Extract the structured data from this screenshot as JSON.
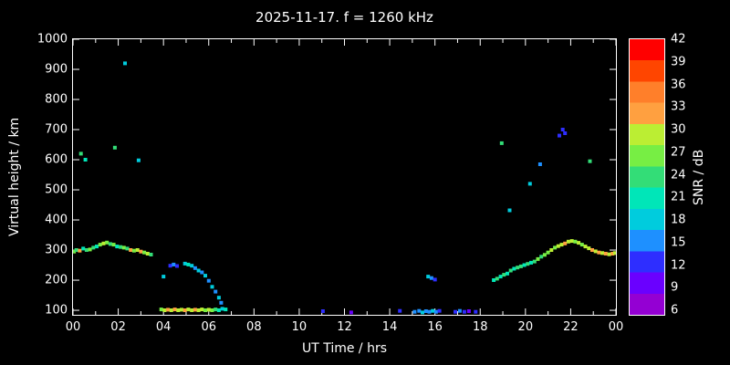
{
  "chart_data": {
    "type": "scatter",
    "title": "2025-11-17. f = 1260 kHz",
    "xlabel": "UT Time / hrs",
    "ylabel": "Virtual height / km",
    "colorbar_label": "SNR / dB",
    "xlim": [
      0,
      24
    ],
    "ylim": [
      85,
      1000
    ],
    "grid": false,
    "x_ticks": [
      {
        "value": 0,
        "label": "00"
      },
      {
        "value": 2,
        "label": "02"
      },
      {
        "value": 4,
        "label": "04"
      },
      {
        "value": 6,
        "label": "06"
      },
      {
        "value": 8,
        "label": "08"
      },
      {
        "value": 10,
        "label": "10"
      },
      {
        "value": 12,
        "label": "12"
      },
      {
        "value": 14,
        "label": "14"
      },
      {
        "value": 16,
        "label": "16"
      },
      {
        "value": 18,
        "label": "18"
      },
      {
        "value": 20,
        "label": "20"
      },
      {
        "value": 22,
        "label": "22"
      },
      {
        "value": 24,
        "label": "00"
      }
    ],
    "x_minor_ticks": [
      1,
      3,
      5,
      7,
      9,
      11,
      13,
      15,
      17,
      19,
      21,
      23
    ],
    "y_ticks": [
      {
        "value": 100,
        "label": "100"
      },
      {
        "value": 200,
        "label": "200"
      },
      {
        "value": 300,
        "label": "300"
      },
      {
        "value": 400,
        "label": "400"
      },
      {
        "value": 500,
        "label": "500"
      },
      {
        "value": 600,
        "label": "600"
      },
      {
        "value": 700,
        "label": "700"
      },
      {
        "value": 800,
        "label": "800"
      },
      {
        "value": 900,
        "label": "900"
      },
      {
        "value": 1000,
        "label": "1000"
      }
    ],
    "colorbar": {
      "tick_values": [
        6,
        9,
        12,
        15,
        18,
        21,
        24,
        27,
        30,
        33,
        36,
        39,
        42
      ],
      "label_min": 6,
      "label_max": 42,
      "stops": [
        {
          "value": 6,
          "color": "#9400d3"
        },
        {
          "value": 9,
          "color": "#6a00ff"
        },
        {
          "value": 12,
          "color": "#2e2eff"
        },
        {
          "value": 15,
          "color": "#1e90ff"
        },
        {
          "value": 18,
          "color": "#00ccdd"
        },
        {
          "value": 21,
          "color": "#00e6b8"
        },
        {
          "value": 24,
          "color": "#33dd77"
        },
        {
          "value": 27,
          "color": "#77ee44"
        },
        {
          "value": 30,
          "color": "#bbee33"
        },
        {
          "value": 33,
          "color": "#ffa040"
        },
        {
          "value": 36,
          "color": "#ff7f2a"
        },
        {
          "value": 39,
          "color": "#ff4500"
        },
        {
          "value": 42,
          "color": "#ff0000"
        }
      ]
    },
    "points_format": [
      "ut_hours",
      "virtual_height_km",
      "snr_db"
    ],
    "points": [
      [
        0.05,
        295,
        27
      ],
      [
        0.15,
        300,
        24
      ],
      [
        0.3,
        298,
        33
      ],
      [
        0.45,
        305,
        21
      ],
      [
        0.6,
        300,
        24
      ],
      [
        0.75,
        302,
        27
      ],
      [
        0.9,
        308,
        24
      ],
      [
        1.05,
        312,
        21
      ],
      [
        1.2,
        318,
        27
      ],
      [
        1.35,
        322,
        30
      ],
      [
        1.5,
        325,
        27
      ],
      [
        1.65,
        320,
        24
      ],
      [
        1.8,
        318,
        27
      ],
      [
        1.95,
        312,
        21
      ],
      [
        2.1,
        310,
        24
      ],
      [
        2.25,
        308,
        27
      ],
      [
        2.4,
        305,
        24
      ],
      [
        2.55,
        300,
        33
      ],
      [
        2.7,
        298,
        27
      ],
      [
        2.85,
        300,
        30
      ],
      [
        3.0,
        295,
        33
      ],
      [
        3.15,
        292,
        27
      ],
      [
        3.3,
        288,
        30
      ],
      [
        3.45,
        285,
        24
      ],
      [
        0.35,
        620,
        24
      ],
      [
        0.55,
        600,
        21
      ],
      [
        1.85,
        640,
        24
      ],
      [
        2.3,
        920,
        18
      ],
      [
        2.9,
        598,
        18
      ],
      [
        3.9,
        103,
        27
      ],
      [
        4.05,
        100,
        30
      ],
      [
        4.2,
        102,
        33
      ],
      [
        4.35,
        100,
        30
      ],
      [
        4.5,
        103,
        33
      ],
      [
        4.65,
        100,
        30
      ],
      [
        4.8,
        102,
        30
      ],
      [
        4.95,
        100,
        33
      ],
      [
        5.1,
        103,
        30
      ],
      [
        5.25,
        100,
        30
      ],
      [
        5.4,
        102,
        33
      ],
      [
        5.55,
        100,
        30
      ],
      [
        5.7,
        103,
        30
      ],
      [
        5.85,
        100,
        27
      ],
      [
        6.0,
        102,
        30
      ],
      [
        6.15,
        100,
        27
      ],
      [
        6.3,
        103,
        24
      ],
      [
        6.45,
        100,
        21
      ],
      [
        6.6,
        105,
        18
      ],
      [
        6.75,
        103,
        21
      ],
      [
        4.0,
        212,
        18
      ],
      [
        4.3,
        248,
        12
      ],
      [
        4.45,
        252,
        15
      ],
      [
        4.6,
        247,
        12
      ],
      [
        4.95,
        255,
        18
      ],
      [
        5.1,
        252,
        21
      ],
      [
        5.25,
        248,
        18
      ],
      [
        5.4,
        240,
        15
      ],
      [
        5.55,
        232,
        18
      ],
      [
        5.7,
        226,
        15
      ],
      [
        5.85,
        215,
        18
      ],
      [
        6.0,
        198,
        15
      ],
      [
        6.15,
        178,
        18
      ],
      [
        6.3,
        162,
        15
      ],
      [
        6.45,
        142,
        18
      ],
      [
        6.55,
        125,
        15
      ],
      [
        11.05,
        97,
        12
      ],
      [
        12.3,
        93,
        9
      ],
      [
        14.45,
        98,
        12
      ],
      [
        15.1,
        95,
        15
      ],
      [
        15.3,
        98,
        15
      ],
      [
        15.45,
        93,
        18
      ],
      [
        15.6,
        97,
        15
      ],
      [
        15.75,
        95,
        15
      ],
      [
        15.9,
        98,
        18
      ],
      [
        16.05,
        95,
        15
      ],
      [
        16.2,
        98,
        12
      ],
      [
        15.7,
        212,
        18
      ],
      [
        15.85,
        207,
        15
      ],
      [
        16.0,
        202,
        12
      ],
      [
        16.9,
        95,
        12
      ],
      [
        17.1,
        98,
        15
      ],
      [
        17.3,
        95,
        12
      ],
      [
        17.5,
        97,
        9
      ],
      [
        17.8,
        95,
        12
      ],
      [
        18.6,
        200,
        21
      ],
      [
        18.75,
        205,
        24
      ],
      [
        18.9,
        212,
        21
      ],
      [
        19.05,
        218,
        24
      ],
      [
        19.2,
        222,
        21
      ],
      [
        19.35,
        232,
        24
      ],
      [
        19.5,
        238,
        21
      ],
      [
        19.65,
        242,
        24
      ],
      [
        19.8,
        246,
        24
      ],
      [
        19.95,
        250,
        21
      ],
      [
        20.1,
        254,
        24
      ],
      [
        20.25,
        258,
        21
      ],
      [
        20.4,
        262,
        24
      ],
      [
        20.55,
        270,
        27
      ],
      [
        20.7,
        278,
        24
      ],
      [
        20.85,
        284,
        27
      ],
      [
        21.0,
        292,
        27
      ],
      [
        21.15,
        300,
        30
      ],
      [
        21.3,
        308,
        27
      ],
      [
        21.45,
        313,
        30
      ],
      [
        21.6,
        318,
        30
      ],
      [
        21.75,
        322,
        33
      ],
      [
        21.9,
        328,
        30
      ],
      [
        22.05,
        330,
        30
      ],
      [
        22.2,
        328,
        27
      ],
      [
        22.35,
        324,
        30
      ],
      [
        22.5,
        318,
        27
      ],
      [
        22.65,
        312,
        30
      ],
      [
        22.8,
        306,
        30
      ],
      [
        22.95,
        300,
        33
      ],
      [
        23.1,
        296,
        30
      ],
      [
        23.25,
        292,
        33
      ],
      [
        23.4,
        290,
        30
      ],
      [
        23.55,
        288,
        33
      ],
      [
        23.7,
        286,
        30
      ],
      [
        23.85,
        288,
        33
      ],
      [
        23.95,
        290,
        30
      ],
      [
        18.95,
        655,
        24
      ],
      [
        19.3,
        432,
        18
      ],
      [
        20.2,
        520,
        18
      ],
      [
        20.65,
        585,
        15
      ],
      [
        21.5,
        680,
        12
      ],
      [
        21.65,
        700,
        12
      ],
      [
        21.75,
        688,
        12
      ],
      [
        22.85,
        595,
        24
      ]
    ]
  }
}
